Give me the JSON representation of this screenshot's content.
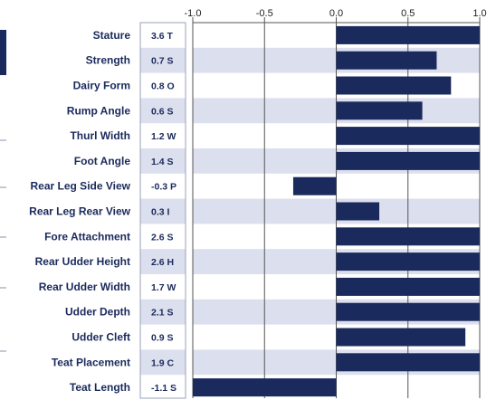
{
  "chart_data": {
    "type": "bar",
    "orientation": "horizontal",
    "title": "",
    "xlabel": "",
    "ylabel": "",
    "xlim": [
      -1.0,
      1.0
    ],
    "x_ticks": [
      "-1.0",
      "-0.5",
      "0.0",
      "0.5",
      "1.0"
    ],
    "grid": true,
    "categories": [
      "Stature",
      "Strength",
      "Dairy Form",
      "Rump Angle",
      "Thurl Width",
      "Foot Angle",
      "Rear Leg Side View",
      "Rear Leg Rear View",
      "Fore Attachment",
      "Rear Udder Height",
      "Rear Udder Width",
      "Udder Depth",
      "Udder Cleft",
      "Teat Placement",
      "Teat Length"
    ],
    "score_labels": [
      "3.6 T",
      "0.7 S",
      "0.8 O",
      "0.6 S",
      "1.2 W",
      "1.4 S",
      "-0.3 P",
      "0.3 I",
      "2.6 S",
      "2.6 H",
      "1.7 W",
      "2.1 S",
      "0.9 S",
      "1.9 C",
      "-1.1 S"
    ],
    "series": [
      {
        "values": [
          1.0,
          0.7,
          0.8,
          0.6,
          1.0,
          1.0,
          -0.3,
          0.3,
          1.0,
          1.0,
          1.0,
          1.0,
          0.9,
          1.0,
          -1.0
        ]
      }
    ],
    "colors": {
      "bar": "#1b2a5c",
      "band": "#dcdfee",
      "grid": "#555555",
      "text": "#1b2a5c"
    }
  }
}
